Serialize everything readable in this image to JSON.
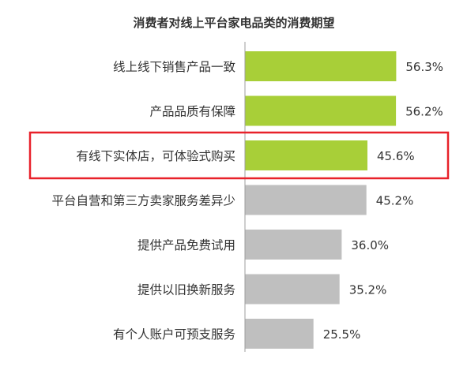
{
  "chart_data": {
    "type": "bar",
    "orientation": "horizontal",
    "title": "消费者对线上平台家电品类的消费期望",
    "categories": [
      "线上线下销售产品一致",
      "产品品质有保障",
      "有线下实体店，可体验式购买",
      "平台自营和第三方卖家服务差异少",
      "提供产品免费试用",
      "提供以旧换新服务",
      "有个人账户可预支服务"
    ],
    "values": [
      56.3,
      56.2,
      45.6,
      45.2,
      36.0,
      35.2,
      25.5
    ],
    "value_labels": [
      "56.3%",
      "56.2%",
      "45.6%",
      "45.2%",
      "36.0%",
      "35.2%",
      "25.5%"
    ],
    "unit": "%",
    "bar_colors": [
      "#a8cf38",
      "#a8cf38",
      "#a8cf38",
      "#bfbfbf",
      "#bfbfbf",
      "#bfbfbf",
      "#bfbfbf"
    ],
    "highlight_index": 2,
    "highlight_color": "#e8212a",
    "axis_line_color": "#9e9e9e",
    "grid": false,
    "legend": "none"
  }
}
